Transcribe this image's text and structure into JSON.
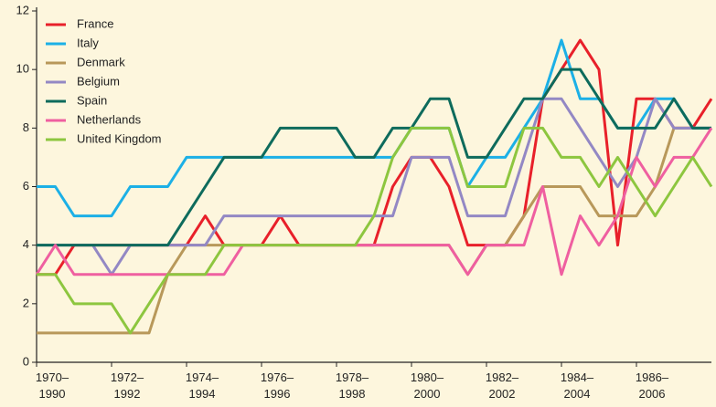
{
  "chart_data": {
    "type": "line",
    "x": [
      1970,
      1970.5,
      1971,
      1971.5,
      1972,
      1972.5,
      1973,
      1973.5,
      1974,
      1974.5,
      1975,
      1975.5,
      1976,
      1976.5,
      1977,
      1977.5,
      1978,
      1978.5,
      1979,
      1979.5,
      1980,
      1980.5,
      1981,
      1981.5,
      1982,
      1982.5,
      1983,
      1983.5,
      1984,
      1984.5,
      1985,
      1985.5,
      1986,
      1986.5,
      1987,
      1987.5,
      1988
    ],
    "xlim": [
      1970,
      1988
    ],
    "xticks": [
      {
        "value": 1970,
        "label": "1970–\n1990"
      },
      {
        "value": 1972,
        "label": "1972–\n1992"
      },
      {
        "value": 1974,
        "label": "1974–\n1994"
      },
      {
        "value": 1976,
        "label": "1976–\n1996"
      },
      {
        "value": 1978,
        "label": "1978–\n1998"
      },
      {
        "value": 1980,
        "label": "1980–\n2000"
      },
      {
        "value": 1982,
        "label": "1982–\n2002"
      },
      {
        "value": 1984,
        "label": "1984–\n2004"
      },
      {
        "value": 1986,
        "label": "1986–\n2006"
      }
    ],
    "ylim": [
      0,
      12
    ],
    "yticks": [
      0,
      2,
      4,
      6,
      8,
      10,
      12
    ],
    "grid": false,
    "legend": "upper left",
    "series": [
      {
        "name": "France",
        "color": "#e8202a",
        "values": [
          3,
          3,
          4,
          4,
          4,
          4,
          4,
          4,
          4,
          5,
          4,
          4,
          4,
          5,
          4,
          4,
          4,
          4,
          4,
          6,
          7,
          7,
          6,
          4,
          4,
          4,
          5,
          9,
          10,
          11,
          10,
          4,
          9,
          9,
          8,
          8,
          9
        ]
      },
      {
        "name": "Italy",
        "color": "#1cb0e6",
        "values": [
          6,
          6,
          5,
          5,
          5,
          6,
          6,
          6,
          7,
          7,
          7,
          7,
          7,
          7,
          7,
          7,
          7,
          7,
          7,
          7,
          8,
          8,
          8,
          6,
          7,
          7,
          8,
          9,
          11,
          9,
          9,
          8,
          8,
          9,
          9,
          8,
          8
        ]
      },
      {
        "name": "Denmark",
        "color": "#b8985a",
        "values": [
          1,
          1,
          1,
          1,
          1,
          1,
          1,
          3,
          4,
          4,
          4,
          4,
          4,
          4,
          4,
          4,
          4,
          4,
          4,
          4,
          4,
          4,
          4,
          3,
          4,
          4,
          5,
          6,
          6,
          6,
          5,
          5,
          5,
          6,
          8,
          8,
          8
        ]
      },
      {
        "name": "Belgium",
        "color": "#9388c4",
        "values": [
          4,
          4,
          4,
          4,
          3,
          4,
          4,
          4,
          4,
          4,
          5,
          5,
          5,
          5,
          5,
          5,
          5,
          5,
          5,
          5,
          7,
          7,
          7,
          5,
          5,
          5,
          7,
          9,
          9,
          8,
          7,
          6,
          7,
          9,
          8,
          8,
          8
        ]
      },
      {
        "name": "Spain",
        "color": "#0e6b5c",
        "values": [
          4,
          4,
          4,
          4,
          4,
          4,
          4,
          4,
          5,
          6,
          7,
          7,
          7,
          8,
          8,
          8,
          8,
          7,
          7,
          8,
          8,
          9,
          9,
          7,
          7,
          8,
          9,
          9,
          10,
          10,
          9,
          8,
          8,
          8,
          9,
          8,
          8
        ]
      },
      {
        "name": "Netherlands",
        "color": "#ef5fa0",
        "values": [
          3,
          4,
          3,
          3,
          3,
          3,
          3,
          3,
          3,
          3,
          3,
          4,
          4,
          4,
          4,
          4,
          4,
          4,
          4,
          4,
          4,
          4,
          4,
          3,
          4,
          4,
          4,
          6,
          3,
          5,
          4,
          5,
          7,
          6,
          7,
          7,
          8
        ]
      },
      {
        "name": "United Kingdom",
        "color": "#8dc63f",
        "values": [
          3,
          3,
          2,
          2,
          2,
          1,
          2,
          3,
          3,
          3,
          4,
          4,
          4,
          4,
          4,
          4,
          4,
          4,
          5,
          7,
          8,
          8,
          8,
          6,
          6,
          6,
          8,
          8,
          7,
          7,
          6,
          7,
          6,
          5,
          6,
          7,
          6
        ]
      }
    ]
  }
}
